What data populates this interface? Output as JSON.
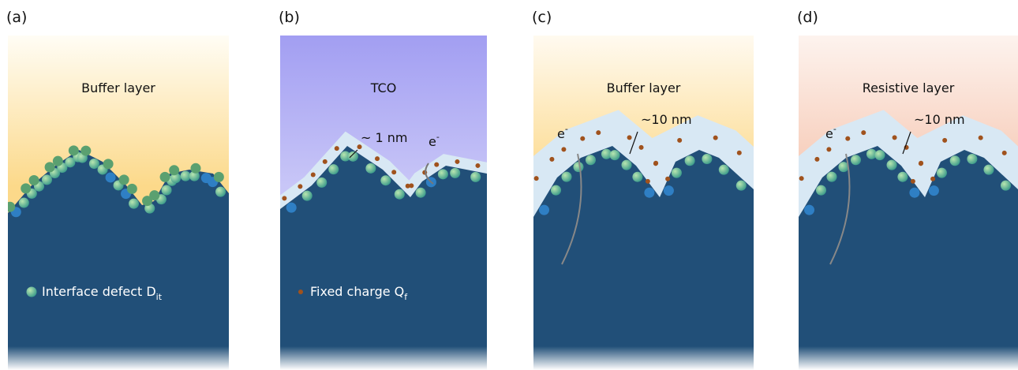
{
  "panels": [
    {
      "label": "(a)",
      "layer": "Buffer layer",
      "legend": {
        "text": "Interface defect D",
        "sub": "it"
      }
    },
    {
      "label": "(b)",
      "layer": "TCO",
      "thickness": "~ 1 nm",
      "electron": {
        "base": "e",
        "sup": "-"
      },
      "legend": {
        "text": "Fixed charge Q",
        "sub": "f"
      }
    },
    {
      "label": "(c)",
      "layer": "Buffer layer",
      "thickness": "~10 nm",
      "electron": {
        "base": "e",
        "sup": "-"
      }
    },
    {
      "label": "(d)",
      "layer": "Resistive layer",
      "thickness": "~10 nm",
      "electron": {
        "base": "e",
        "sup": "-"
      }
    }
  ]
}
